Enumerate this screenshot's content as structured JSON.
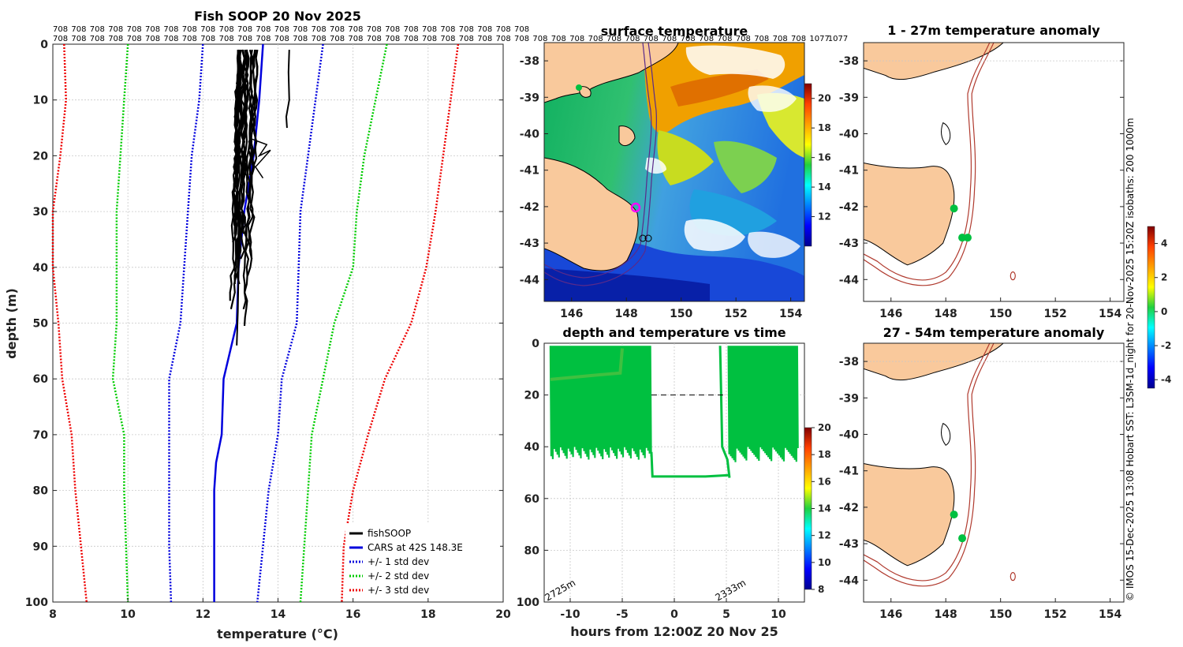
{
  "chart_data": [
    {
      "type": "line",
      "title": "Fish SOOP 20 Nov 2025",
      "xlabel": "temperature (°C)",
      "ylabel": "depth (m)",
      "xlim": [
        8,
        20
      ],
      "ylim": [
        100,
        0
      ],
      "xticks": [
        "8",
        "10",
        "12",
        "14",
        "16",
        "18",
        "20"
      ],
      "yticks": [
        "0",
        "10",
        "20",
        "30",
        "40",
        "50",
        "60",
        "70",
        "80",
        "90",
        "100"
      ],
      "top_row1": [
        "708",
        "708",
        "708",
        "708",
        "708",
        "708",
        "708",
        "708",
        "708",
        "708",
        "708",
        "708",
        "708",
        "708",
        "708",
        "708",
        "708",
        "708",
        "708",
        "708",
        "708",
        "708",
        "708",
        "708",
        "708",
        "708"
      ],
      "top_row2": [
        "708",
        "708",
        "708",
        "708",
        "708",
        "708",
        "708",
        "708",
        "708",
        "708",
        "708",
        "708",
        "708",
        "708",
        "708",
        "708",
        "708",
        "708",
        "708",
        "708",
        "708",
        "708",
        "708",
        "708",
        "708",
        "708",
        "708",
        "708",
        "708",
        "708",
        "708",
        "708",
        "708",
        "708",
        "708",
        "708",
        "708",
        "708",
        "708",
        "708",
        "708",
        "1077",
        "1077"
      ],
      "legend": [
        "fishSOOP",
        "CARS at 42S 148.3E",
        "+/- 1 std dev",
        "+/- 2 std dev",
        "+/- 3 std dev"
      ],
      "series": [
        {
          "name": "CARS",
          "color": "#0000dd",
          "style": "solid",
          "points": [
            [
              13.6,
              0
            ],
            [
              13.5,
              10
            ],
            [
              13.35,
              20
            ],
            [
              13.1,
              30
            ],
            [
              12.95,
              40
            ],
            [
              12.9,
              50
            ],
            [
              12.55,
              60
            ],
            [
              12.5,
              70
            ],
            [
              12.35,
              75
            ],
            [
              12.3,
              80
            ],
            [
              12.3,
              90
            ],
            [
              12.3,
              100
            ]
          ]
        },
        {
          "name": "+1 sd",
          "color": "#0000dd",
          "style": "dot",
          "points": [
            [
              15.2,
              0
            ],
            [
              15.0,
              10
            ],
            [
              14.8,
              20
            ],
            [
              14.6,
              30
            ],
            [
              14.55,
              40
            ],
            [
              14.5,
              50
            ],
            [
              14.1,
              60
            ],
            [
              14.0,
              70
            ],
            [
              13.75,
              80
            ],
            [
              13.6,
              90
            ],
            [
              13.45,
              100
            ]
          ]
        },
        {
          "name": "-1 sd",
          "color": "#0000dd",
          "style": "dot",
          "points": [
            [
              12.0,
              0
            ],
            [
              11.9,
              10
            ],
            [
              11.7,
              20
            ],
            [
              11.6,
              30
            ],
            [
              11.5,
              40
            ],
            [
              11.4,
              50
            ],
            [
              11.1,
              60
            ],
            [
              11.1,
              70
            ],
            [
              11.1,
              80
            ],
            [
              11.1,
              90
            ],
            [
              11.15,
              100
            ]
          ]
        },
        {
          "name": "+2 sd",
          "color": "#00cc00",
          "style": "dot",
          "points": [
            [
              16.9,
              0
            ],
            [
              16.6,
              10
            ],
            [
              16.3,
              20
            ],
            [
              16.1,
              30
            ],
            [
              16.0,
              40
            ],
            [
              15.5,
              50
            ],
            [
              15.2,
              60
            ],
            [
              14.9,
              70
            ],
            [
              14.8,
              80
            ],
            [
              14.7,
              90
            ],
            [
              14.6,
              100
            ]
          ]
        },
        {
          "name": "-2 sd",
          "color": "#00cc00",
          "style": "dot",
          "points": [
            [
              10.0,
              0
            ],
            [
              9.9,
              10
            ],
            [
              9.8,
              20
            ],
            [
              9.7,
              30
            ],
            [
              9.7,
              40
            ],
            [
              9.7,
              50
            ],
            [
              9.6,
              60
            ],
            [
              9.9,
              70
            ],
            [
              9.9,
              80
            ],
            [
              9.95,
              90
            ],
            [
              10.0,
              100
            ]
          ]
        },
        {
          "name": "+3 sd",
          "color": "#ee0000",
          "style": "dot",
          "points": [
            [
              18.8,
              0
            ],
            [
              18.6,
              10
            ],
            [
              18.4,
              20
            ],
            [
              18.2,
              30
            ],
            [
              17.95,
              40
            ],
            [
              17.55,
              50
            ],
            [
              16.85,
              60
            ],
            [
              16.4,
              70
            ],
            [
              16.0,
              80
            ],
            [
              15.75,
              90
            ],
            [
              15.7,
              100
            ]
          ]
        },
        {
          "name": "-3 sd",
          "color": "#ee0000",
          "style": "dot",
          "points": [
            [
              8.3,
              0
            ],
            [
              8.35,
              10
            ],
            [
              8.2,
              20
            ],
            [
              8.0,
              30
            ],
            [
              8.0,
              40
            ],
            [
              8.15,
              50
            ],
            [
              8.25,
              60
            ],
            [
              8.5,
              70
            ],
            [
              8.6,
              80
            ],
            [
              8.75,
              90
            ],
            [
              8.9,
              100
            ]
          ]
        }
      ]
    },
    {
      "type": "heatmap",
      "title": "surface temperature",
      "xticks": [
        "146",
        "148",
        "150",
        "152",
        "154"
      ],
      "yticks": [
        "-38",
        "-39",
        "-40",
        "-41",
        "-42",
        "-43",
        "-44"
      ],
      "colorbar_ticks": [
        "20",
        "18",
        "16",
        "14",
        "12"
      ],
      "colorbar_range": [
        10,
        21
      ]
    },
    {
      "type": "scatter",
      "title": "depth and temperature vs time",
      "xlabel": "hours from 12:00Z 20 Nov 25",
      "xticks": [
        "-10",
        "-5",
        "0",
        "5",
        "10"
      ],
      "yticks": [
        "0",
        "20",
        "40",
        "60",
        "80",
        "100"
      ],
      "xlim": [
        -12.5,
        12.5
      ],
      "ylim": [
        100,
        0
      ],
      "annotations": [
        "2725m",
        "2333m"
      ],
      "colorbar_ticks": [
        "20",
        "18",
        "16",
        "14",
        "12",
        "10",
        "8"
      ],
      "colorbar_range": [
        8,
        20
      ]
    },
    {
      "type": "scatter",
      "title": "1 - 27m temperature anomaly",
      "xticks": [
        "146",
        "148",
        "150",
        "152",
        "154"
      ],
      "yticks": [
        "-38",
        "-39",
        "-40",
        "-41",
        "-42",
        "-43",
        "-44"
      ],
      "points": [
        [
          148.3,
          -42.05
        ],
        [
          148.6,
          -42.85
        ],
        [
          148.8,
          -42.85
        ]
      ]
    },
    {
      "type": "scatter",
      "title": "27 - 54m temperature anomaly",
      "xticks": [
        "146",
        "148",
        "150",
        "152",
        "154"
      ],
      "yticks": [
        "-38",
        "-39",
        "-40",
        "-41",
        "-42",
        "-43",
        "-44"
      ],
      "points": [
        [
          148.3,
          -42.2
        ],
        [
          148.6,
          -42.85
        ]
      ],
      "colorbar_ticks": [
        "4",
        "2",
        "0",
        "-2",
        "-4"
      ],
      "colorbar_range": [
        -4.5,
        5
      ]
    }
  ],
  "side_text": "© IMOS 15-Dec-2025 13:08 Hobart SST: L3SM-1d_night for 20-Nov-2025 15:20Z isobaths: 200  1000m",
  "colors": {
    "land": "#f9c99c",
    "isobath": "#b03a2e",
    "fish": "#00c040",
    "axis": "#222222"
  }
}
